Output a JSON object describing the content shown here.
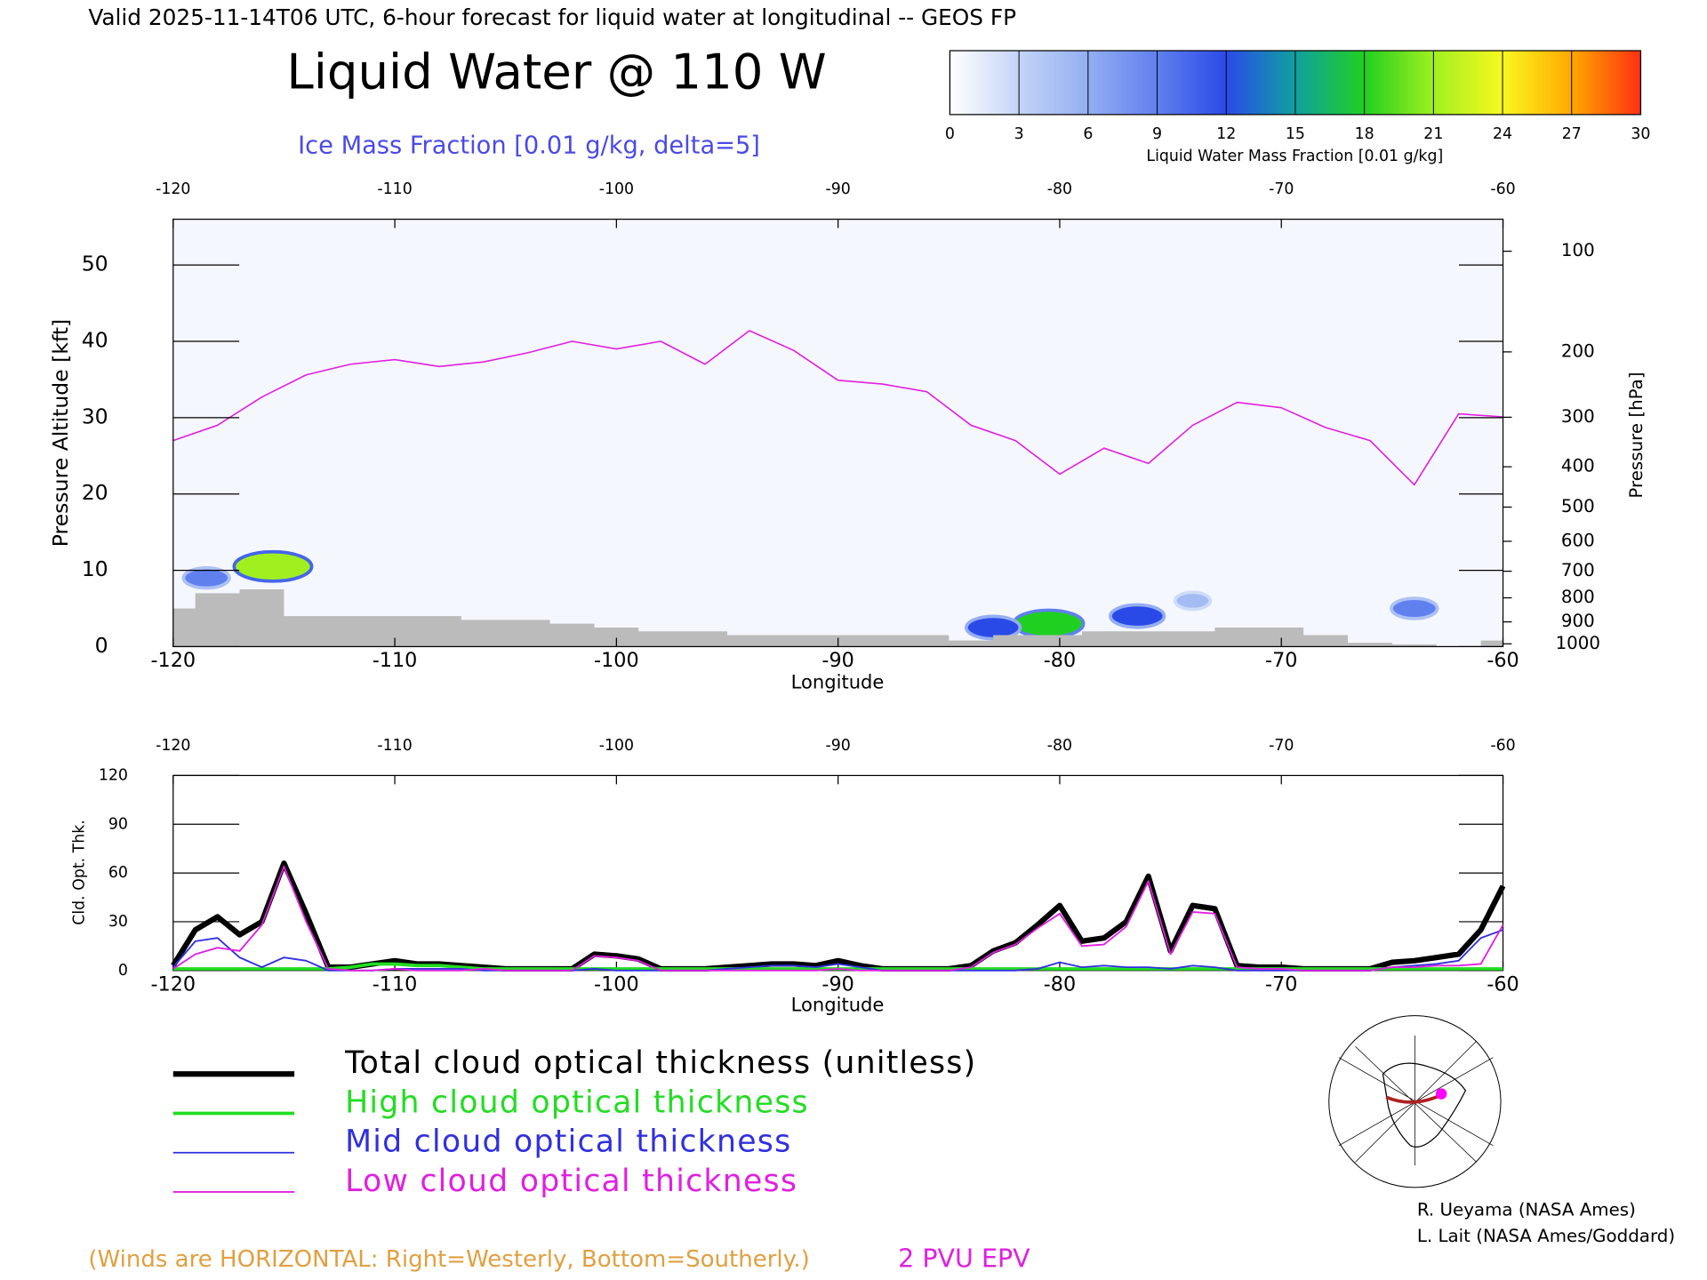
{
  "chart_data": [
    {
      "type": "cross-section",
      "header": "Valid 2025-11-14T06 UTC, 6-hour forecast for liquid water at longitudinal -- GEOS FP",
      "title": "Liquid Water @ 110 W",
      "subtitle": "Ice Mass Fraction [0.01 g/kg, delta=5]",
      "xlabel": "Longitude",
      "ylabel": "Pressure Altitude [kft]",
      "y2label": "Pressure [hPa]",
      "xlim": [
        -120,
        -60
      ],
      "xticks": [
        -120,
        -110,
        -100,
        -90,
        -80,
        -70,
        -60
      ],
      "ylim": [
        0,
        56
      ],
      "yticks": [
        0,
        10,
        20,
        30,
        40,
        50
      ],
      "y2ticks": [
        100,
        200,
        300,
        400,
        500,
        600,
        700,
        800,
        900,
        1000
      ],
      "y2scale": "pressure-altitude",
      "background": "#f5f7fe",
      "x": [
        -120,
        -118,
        -116,
        -114,
        -112,
        -110,
        -108,
        -106,
        -104,
        -102,
        -100,
        -98,
        -96,
        -94,
        -92,
        -90,
        -88,
        -86,
        -84,
        -82,
        -80,
        -78,
        -76,
        -74,
        -72,
        -70,
        -68,
        -66,
        -64,
        -62,
        -60
      ],
      "series": [
        {
          "name": "2 PVU EPV",
          "color": "#e020e0",
          "values": [
            27,
            29,
            32.7,
            35.6,
            37,
            37.6,
            36.7,
            37.3,
            38.5,
            40,
            39,
            40,
            37,
            41.4,
            38.8,
            34.9,
            34.4,
            33.4,
            29,
            27,
            22.6,
            26,
            24,
            29,
            32,
            31.3,
            28.7,
            27,
            21.2,
            30.5,
            30.1
          ]
        }
      ],
      "terrain": {
        "color": "#bbbbbb",
        "values": [
          5,
          7,
          7.5,
          4,
          4,
          4,
          4,
          3.5,
          3.5,
          3,
          2.5,
          2,
          2,
          1.5,
          1.5,
          1.5,
          1.5,
          1.5,
          0.8,
          1.5,
          1.5,
          2,
          2,
          2,
          2.5,
          2.5,
          1.5,
          0.5,
          0.3,
          0,
          0.8
        ]
      },
      "cells": {
        "x": [
          -115.5,
          -118.5,
          -80.5,
          -83,
          -76.5,
          -64,
          -74
        ],
        "y": [
          10.5,
          9,
          3,
          2.5,
          4,
          5,
          6
        ],
        "values": [
          21,
          9,
          18,
          12,
          12,
          9,
          5
        ]
      },
      "colorbar": {
        "label": "Liquid Water Mass Fraction [0.01 g/kg]",
        "ticks": [
          0,
          3,
          6,
          9,
          12,
          15,
          18,
          21,
          24,
          27,
          30
        ],
        "colors": [
          "#ffffff",
          "#c4d4f8",
          "#94aef2",
          "#6080ee",
          "#2a4ae8",
          "#10a0a0",
          "#20d020",
          "#a0f020",
          "#f8f820",
          "#ffa800",
          "#ff3010"
        ]
      },
      "wind_note": "(Winds are HORIZONTAL: Right=Westerly, Bottom=Southerly.)"
    },
    {
      "type": "line",
      "xlabel": "Longitude",
      "ylabel": "Cld. Opt. Thk.",
      "xlim": [
        -120,
        -60
      ],
      "xticks": [
        -120,
        -110,
        -100,
        -90,
        -80,
        -70,
        -60
      ],
      "ylim": [
        0,
        120
      ],
      "yticks": [
        0,
        30,
        60,
        90,
        120
      ],
      "x": [
        -120,
        -119,
        -118,
        -117,
        -116,
        -115,
        -114,
        -113,
        -112,
        -111,
        -110,
        -109,
        -108,
        -107,
        -106,
        -105,
        -104,
        -103,
        -102,
        -101,
        -100,
        -99,
        -98,
        -97,
        -96,
        -95,
        -94,
        -93,
        -92,
        -91,
        -90,
        -89,
        -88,
        -87,
        -86,
        -85,
        -84,
        -83,
        -82,
        -81,
        -80,
        -79,
        -78,
        -77,
        -76,
        -75,
        -74,
        -73,
        -72,
        -71,
        -70,
        -69,
        -68,
        -67,
        -66,
        -65,
        -64,
        -63,
        -62,
        -61,
        -60
      ],
      "series": [
        {
          "name": "Total cloud optical thickness (unitless)",
          "color": "#000000",
          "width": 5,
          "values": [
            3,
            25,
            33,
            22,
            30,
            66,
            35,
            2,
            2,
            4,
            6,
            4,
            4,
            3,
            2,
            1,
            1,
            1,
            1,
            10,
            9,
            7,
            1,
            1,
            1,
            2,
            3,
            4,
            4,
            3,
            6,
            3,
            1,
            1,
            1,
            1,
            3,
            12,
            17,
            28,
            40,
            18,
            20,
            30,
            58,
            12,
            40,
            38,
            3,
            2,
            2,
            1,
            1,
            1,
            1,
            5,
            6,
            8,
            10,
            25,
            52
          ]
        },
        {
          "name": "High cloud optical thickness",
          "color": "#22dd22",
          "width": 3,
          "values": [
            1,
            1,
            1,
            1,
            1,
            1,
            1,
            1,
            2,
            4,
            4,
            3,
            3,
            2,
            1,
            1,
            1,
            1,
            1,
            1,
            1,
            1,
            1,
            1,
            1,
            1,
            1,
            1,
            1,
            1,
            1,
            1,
            1,
            1,
            1,
            1,
            1,
            1,
            1,
            1,
            1,
            1,
            1,
            1,
            1,
            1,
            1,
            1,
            1,
            1,
            1,
            1,
            1,
            1,
            1,
            1,
            1,
            1,
            1,
            1,
            1
          ]
        },
        {
          "name": "Mid cloud optical thickness",
          "color": "#3030e0",
          "width": 1.5,
          "values": [
            2,
            18,
            20,
            8,
            2,
            8,
            6,
            0,
            0,
            0,
            1,
            1,
            1,
            1,
            0,
            0,
            0,
            0,
            0,
            1,
            0,
            0,
            0,
            0,
            0,
            1,
            2,
            3,
            3,
            2,
            4,
            2,
            0,
            0,
            0,
            0,
            0,
            0,
            0,
            1,
            5,
            2,
            3,
            2,
            2,
            1,
            3,
            2,
            0,
            0,
            0,
            0,
            0,
            0,
            0,
            2,
            3,
            4,
            6,
            20,
            25
          ]
        },
        {
          "name": "Low cloud optical thickness",
          "color": "#e020e0",
          "width": 1.5,
          "values": [
            1,
            10,
            14,
            12,
            28,
            64,
            30,
            1,
            0,
            0,
            1,
            0,
            0,
            0,
            1,
            0,
            0,
            0,
            0,
            9,
            8,
            6,
            0,
            0,
            0,
            0,
            0,
            0,
            0,
            0,
            1,
            0,
            0,
            0,
            0,
            0,
            2,
            11,
            16,
            26,
            35,
            15,
            16,
            27,
            55,
            10,
            36,
            35,
            2,
            1,
            1,
            0,
            0,
            0,
            0,
            2,
            2,
            3,
            3,
            4,
            28
          ]
        }
      ]
    }
  ],
  "credits": [
    "R. Ueyama (NASA Ames)",
    "L. Lait (NASA Ames/Goddard)"
  ]
}
